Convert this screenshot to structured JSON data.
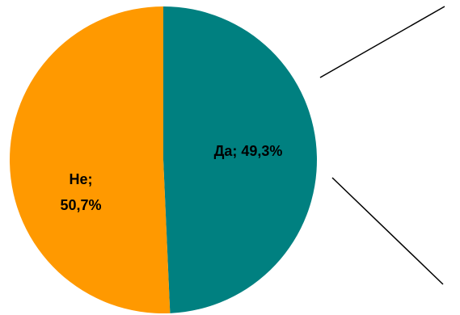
{
  "chart_data": {
    "type": "pie",
    "slices": [
      {
        "category": "Да",
        "value": 49.3,
        "label_line1": "Да; 49,3%",
        "color": "#008080"
      },
      {
        "category": "Не",
        "value": 50.7,
        "label_line1": "Не;",
        "label_line2": "50,7%",
        "color": "#FF9900"
      }
    ]
  }
}
